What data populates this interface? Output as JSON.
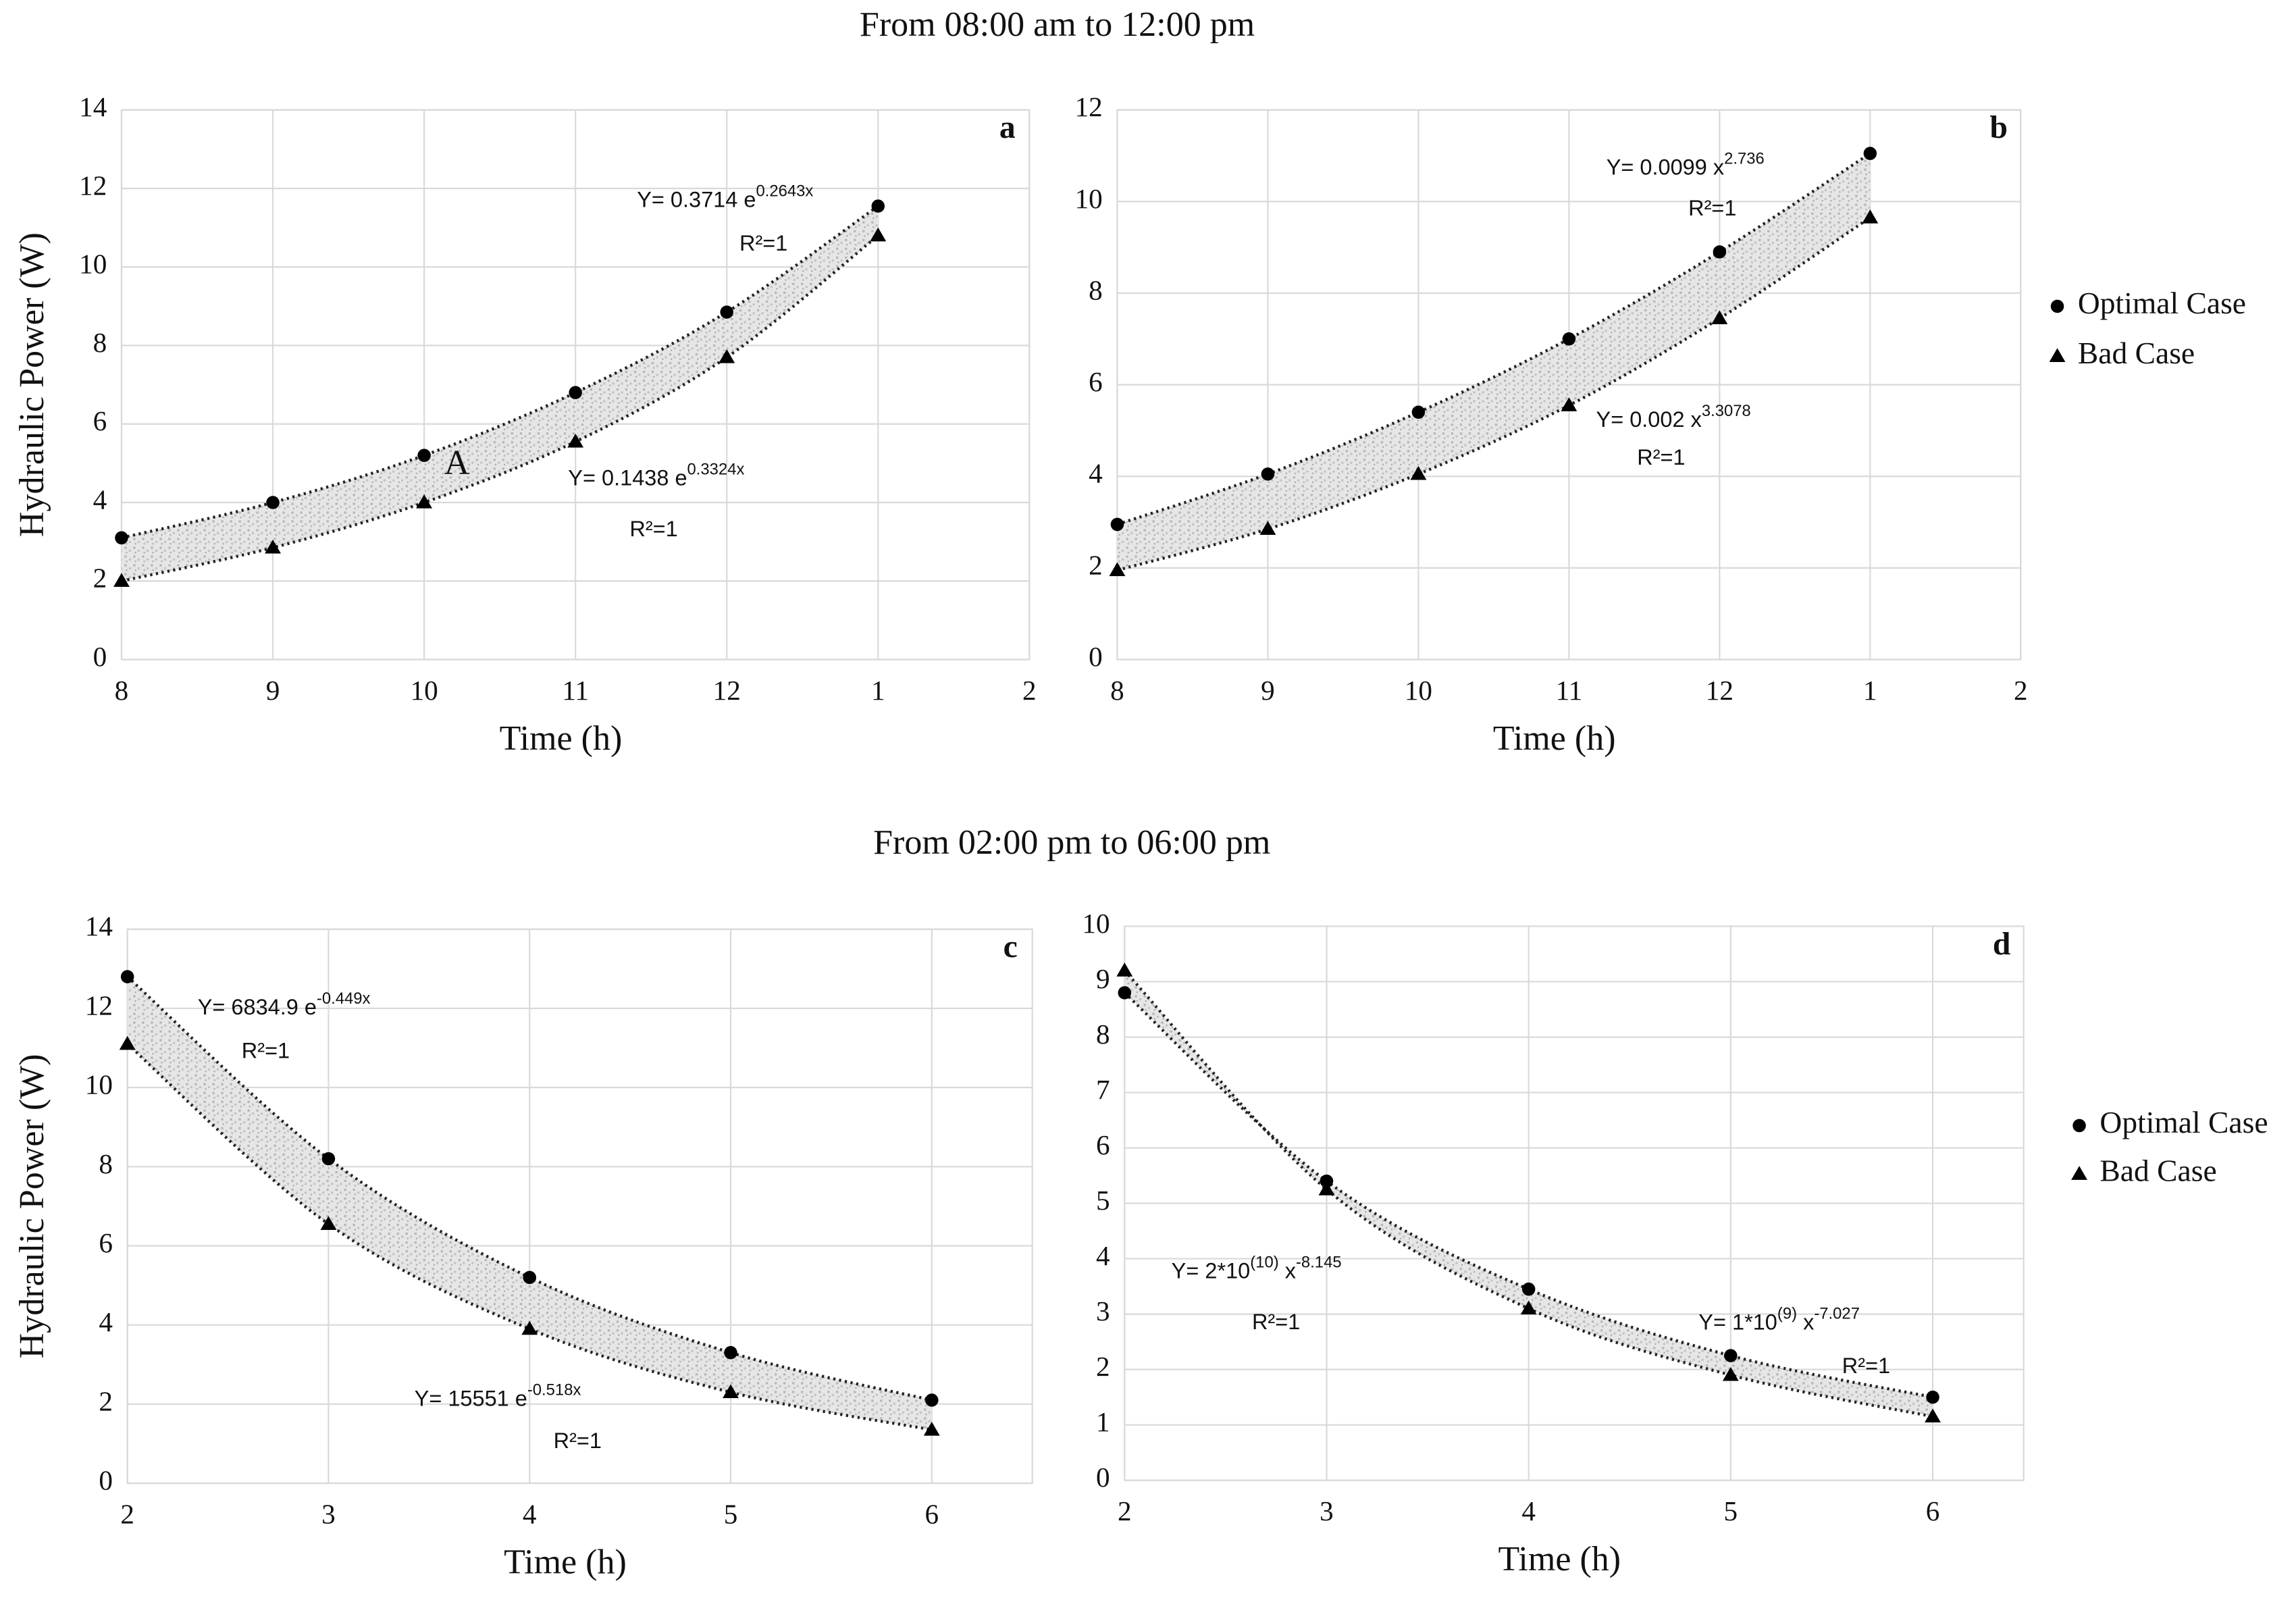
{
  "headings": [
    "From 08:00 am to 12:00 pm",
    "From 02:00 pm to 06:00 pm"
  ],
  "chart_data": [
    {
      "type": "scatter-trend",
      "panel": "a",
      "x_label": "Time (h)",
      "y_label": "Hydraulic Power (W)",
      "x": [
        8,
        9,
        10,
        11,
        12,
        13
      ],
      "xlim": [
        8,
        14
      ],
      "xticks": [
        8,
        9,
        10,
        11,
        12,
        {
          "value": 13,
          "label": "1"
        },
        {
          "value": 14,
          "label": "2"
        }
      ],
      "ylim": [
        0,
        14
      ],
      "yticks": [
        0,
        2,
        4,
        6,
        8,
        10,
        12,
        14
      ],
      "grid": true,
      "series": [
        {
          "name": "Optimal Case",
          "color": "#000000",
          "marker": "circle",
          "values": [
            3.1,
            4.0,
            5.2,
            6.8,
            8.85,
            11.55
          ]
        },
        {
          "name": "Bad Case",
          "color": "#000000",
          "marker": "triangle",
          "values": [
            2.0,
            2.85,
            4.0,
            5.55,
            7.7,
            10.8
          ]
        }
      ],
      "equations": [
        {
          "parts": [
            "Y= 0.3714 e",
            "0.2643x"
          ],
          "r2": "R²=1"
        },
        {
          "parts": [
            "Y= 0.1438 e",
            "0.3324x"
          ],
          "r2": "R²=1"
        }
      ],
      "annotation": "A"
    },
    {
      "type": "scatter-trend",
      "panel": "b",
      "x_label": "Time (h)",
      "x": [
        8,
        9,
        10,
        11,
        12,
        13
      ],
      "xlim": [
        8,
        14
      ],
      "xticks": [
        8,
        9,
        10,
        11,
        12,
        {
          "value": 13,
          "label": "1"
        },
        {
          "value": 14,
          "label": "2"
        }
      ],
      "ylim": [
        0,
        12
      ],
      "yticks": [
        0,
        2,
        4,
        6,
        8,
        10,
        12
      ],
      "grid": true,
      "series": [
        {
          "name": "Optimal Case",
          "color": "#000000",
          "marker": "circle",
          "values": [
            2.95,
            4.05,
            5.4,
            7.0,
            8.9,
            11.05
          ]
        },
        {
          "name": "Bad Case",
          "color": "#000000",
          "marker": "triangle",
          "values": [
            1.95,
            2.85,
            4.05,
            5.55,
            7.45,
            9.65
          ]
        }
      ],
      "equations": [
        {
          "parts": [
            "Y= 0.0099 x",
            "2.736"
          ],
          "r2": "R²=1"
        },
        {
          "parts": [
            "Y= 0.002 x",
            "3.3078"
          ],
          "r2": "R²=1"
        }
      ]
    },
    {
      "type": "scatter-trend",
      "panel": "c",
      "x_label": "Time (h)",
      "y_label": "Hydraulic Power (W)",
      "x": [
        2,
        3,
        4,
        5,
        6
      ],
      "xlim": [
        2,
        6.5
      ],
      "xticks": [
        2,
        3,
        4,
        5,
        6
      ],
      "ylim": [
        0,
        14
      ],
      "yticks": [
        0,
        2,
        4,
        6,
        8,
        10,
        12,
        14
      ],
      "grid": true,
      "series": [
        {
          "name": "Optimal Case",
          "color": "#000000",
          "marker": "circle",
          "values": [
            12.8,
            8.2,
            5.2,
            3.3,
            2.1
          ]
        },
        {
          "name": "Bad Case",
          "color": "#000000",
          "marker": "triangle",
          "values": [
            11.1,
            6.55,
            3.9,
            2.3,
            1.35
          ]
        }
      ],
      "equations": [
        {
          "parts": [
            "Y=  6834.9 e",
            "-0.449x"
          ],
          "r2": "R²=1"
        },
        {
          "parts": [
            "Y=  15551 e",
            "-0.518x"
          ],
          "r2": "R²=1"
        }
      ]
    },
    {
      "type": "scatter-trend",
      "panel": "d",
      "x_label": "Time (h)",
      "x": [
        2,
        3,
        4,
        5,
        6
      ],
      "xlim": [
        2,
        6.45
      ],
      "xticks": [
        2,
        3,
        4,
        5,
        6
      ],
      "ylim": [
        0,
        10
      ],
      "yticks": [
        0,
        1,
        2,
        3,
        4,
        5,
        6,
        7,
        8,
        9,
        10
      ],
      "grid": true,
      "series": [
        {
          "name": "Optimal Case",
          "color": "#000000",
          "marker": "circle",
          "values": [
            8.8,
            5.4,
            3.45,
            2.25,
            1.5
          ]
        },
        {
          "name": "Bad Case",
          "color": "#000000",
          "marker": "triangle",
          "values": [
            9.2,
            5.25,
            3.1,
            1.9,
            1.15
          ]
        }
      ],
      "equations": [
        {
          "parts": [
            "Y= 2*10",
            "(10)",
            " x",
            "-8.145"
          ],
          "r2": "R²=1"
        },
        {
          "parts": [
            "Y= 1*10",
            "(9)",
            " x",
            "-7.027"
          ],
          "r2": "R²=1"
        }
      ]
    }
  ]
}
